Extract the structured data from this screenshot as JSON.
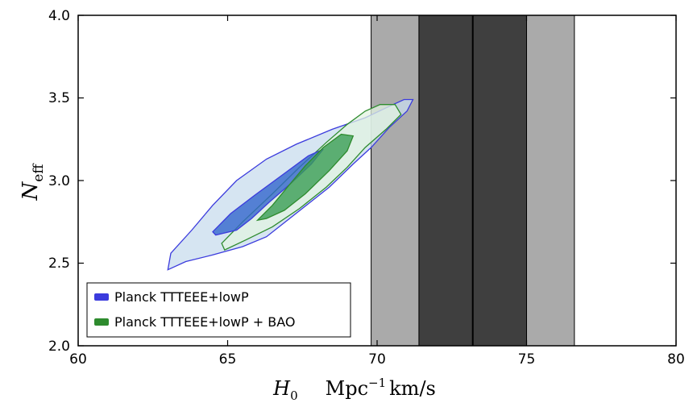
{
  "chart_data": {
    "type": "contour",
    "xlabel": "H0 Mpc^-1 km/s",
    "ylabel": "N_eff",
    "xlim": [
      60,
      80
    ],
    "ylim": [
      2.0,
      4.0
    ],
    "xticks": [
      "60",
      "65",
      "70",
      "75",
      "80"
    ],
    "yticks": [
      "2.0",
      "2.5",
      "3.0",
      "3.5",
      "4.0"
    ],
    "grid": false,
    "legend_position": "lower-left",
    "bands": [
      {
        "x0": 69.8,
        "x1": 71.4,
        "color": "#aaaaaa"
      },
      {
        "x0": 71.4,
        "x1": 75.0,
        "color": "#3f3f3f"
      },
      {
        "x0": 75.0,
        "x1": 76.6,
        "color": "#aaaaaa"
      }
    ],
    "center_line": {
      "x": 73.2,
      "color": "#000000"
    },
    "series": [
      {
        "name": "Planck TTTEEE+lowP",
        "color": "#3b3bdd",
        "outer_fill": "#c8dcee",
        "inner_fill": "#3366cc",
        "outer_contour": [
          [
            63.0,
            2.46
          ],
          [
            63.1,
            2.56
          ],
          [
            63.8,
            2.7
          ],
          [
            64.5,
            2.85
          ],
          [
            65.3,
            3.0
          ],
          [
            66.3,
            3.13
          ],
          [
            67.3,
            3.22
          ],
          [
            68.5,
            3.31
          ],
          [
            69.6,
            3.38
          ],
          [
            70.3,
            3.44
          ],
          [
            70.9,
            3.49
          ],
          [
            71.2,
            3.49
          ],
          [
            71.0,
            3.42
          ],
          [
            70.4,
            3.32
          ],
          [
            69.8,
            3.2
          ],
          [
            69.2,
            3.1
          ],
          [
            68.4,
            2.96
          ],
          [
            67.7,
            2.86
          ],
          [
            67.0,
            2.76
          ],
          [
            66.3,
            2.66
          ],
          [
            65.5,
            2.6
          ],
          [
            64.5,
            2.55
          ],
          [
            63.6,
            2.51
          ],
          [
            63.0,
            2.46
          ]
        ],
        "inner_contour": [
          [
            64.5,
            2.69
          ],
          [
            65.1,
            2.8
          ],
          [
            65.9,
            2.91
          ],
          [
            66.8,
            3.03
          ],
          [
            67.7,
            3.15
          ],
          [
            68.2,
            3.19
          ],
          [
            67.8,
            3.1
          ],
          [
            67.1,
            2.98
          ],
          [
            66.4,
            2.87
          ],
          [
            65.8,
            2.77
          ],
          [
            65.3,
            2.7
          ],
          [
            64.6,
            2.67
          ],
          [
            64.5,
            2.69
          ]
        ]
      },
      {
        "name": "Planck TTTEEE+lowP + BAO",
        "color": "#2e8b2e",
        "outer_fill": "#e2f3e2",
        "inner_fill": "#3a9e55",
        "outer_contour": [
          [
            64.8,
            2.62
          ],
          [
            65.5,
            2.75
          ],
          [
            66.5,
            2.92
          ],
          [
            67.4,
            3.08
          ],
          [
            68.3,
            3.23
          ],
          [
            69.0,
            3.34
          ],
          [
            69.6,
            3.42
          ],
          [
            70.1,
            3.46
          ],
          [
            70.6,
            3.46
          ],
          [
            70.8,
            3.4
          ],
          [
            70.3,
            3.31
          ],
          [
            69.6,
            3.2
          ],
          [
            69.0,
            3.08
          ],
          [
            68.3,
            2.96
          ],
          [
            67.4,
            2.83
          ],
          [
            66.5,
            2.72
          ],
          [
            65.6,
            2.64
          ],
          [
            64.9,
            2.58
          ],
          [
            64.8,
            2.62
          ]
        ],
        "inner_contour": [
          [
            66.0,
            2.76
          ],
          [
            66.5,
            2.85
          ],
          [
            67.0,
            2.96
          ],
          [
            67.6,
            3.09
          ],
          [
            68.2,
            3.2
          ],
          [
            68.8,
            3.28
          ],
          [
            69.2,
            3.27
          ],
          [
            69.0,
            3.18
          ],
          [
            68.4,
            3.06
          ],
          [
            67.6,
            2.92
          ],
          [
            66.9,
            2.82
          ],
          [
            66.3,
            2.77
          ],
          [
            66.0,
            2.76
          ]
        ]
      }
    ]
  }
}
